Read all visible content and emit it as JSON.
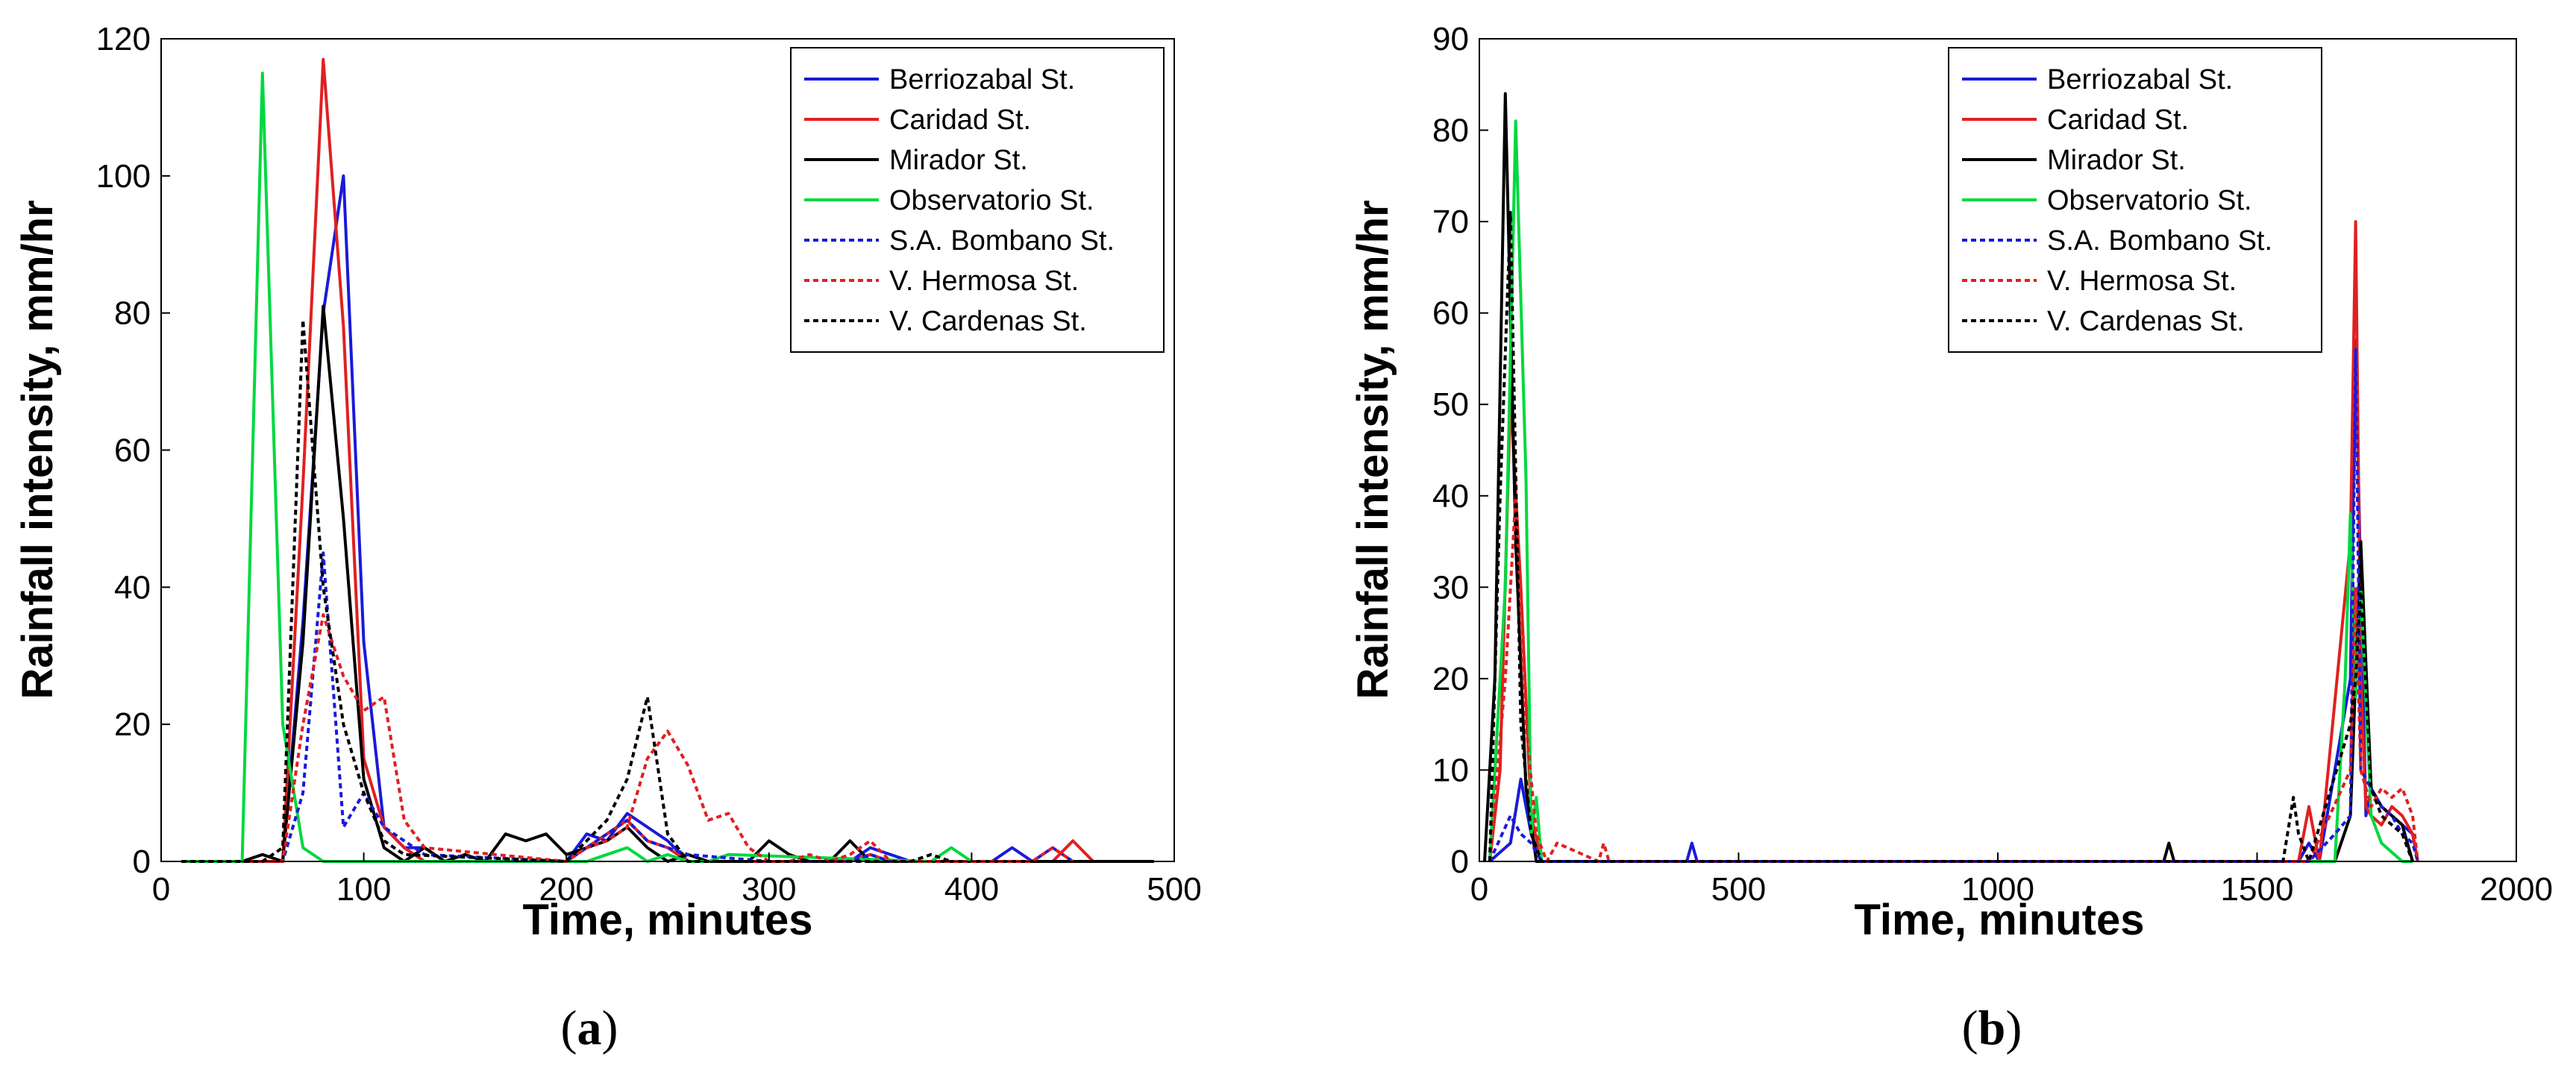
{
  "chart_data": [
    {
      "type": "line",
      "panel_label": "(a)",
      "caption_parts": [
        "(",
        "a",
        ")"
      ],
      "xlabel": "Time, minutes",
      "ylabel": "Rainfall intensity, mm/hr",
      "xlim": [
        0,
        500
      ],
      "ylim": [
        0,
        120
      ],
      "xticks": [
        0,
        100,
        200,
        300,
        400,
        500
      ],
      "yticks": [
        0,
        20,
        40,
        60,
        80,
        100,
        120
      ],
      "legend_position": "top-right",
      "series": [
        {
          "name": "Berriozabal St.",
          "color": "#1a1ad9",
          "dash": "solid",
          "x": [
            10,
            40,
            50,
            60,
            70,
            80,
            90,
            100,
            110,
            120,
            130,
            140,
            150,
            200,
            210,
            220,
            230,
            240,
            250,
            260,
            270,
            280,
            290,
            300,
            340,
            350,
            360,
            370,
            410,
            420,
            430,
            440,
            450,
            460
          ],
          "y": [
            0,
            0,
            0,
            0,
            35,
            80,
            100,
            32,
            5,
            2,
            2,
            0,
            0,
            0,
            4,
            3,
            7,
            5,
            3,
            0,
            0,
            0,
            0,
            0,
            0,
            2,
            1,
            0,
            0,
            2,
            0,
            2,
            0,
            0
          ]
        },
        {
          "name": "Caridad St.",
          "color": "#e02020",
          "dash": "solid",
          "x": [
            10,
            40,
            50,
            60,
            70,
            80,
            90,
            100,
            110,
            120,
            130,
            190,
            200,
            210,
            220,
            230,
            240,
            250,
            260,
            330,
            340,
            350,
            360,
            430,
            440,
            450,
            460
          ],
          "y": [
            0,
            0,
            0,
            0,
            55,
            117,
            78,
            15,
            5,
            2,
            0,
            0,
            0,
            2,
            4,
            6,
            3,
            2,
            0,
            0,
            0,
            1,
            0,
            0,
            0,
            3,
            0
          ]
        },
        {
          "name": "Mirador St.",
          "color": "#000000",
          "dash": "solid",
          "x": [
            10,
            40,
            50,
            60,
            70,
            80,
            90,
            100,
            110,
            120,
            130,
            140,
            150,
            160,
            170,
            180,
            190,
            200,
            210,
            220,
            230,
            240,
            250,
            260,
            270,
            280,
            290,
            300,
            310,
            320,
            330,
            340,
            350,
            360,
            390,
            400,
            490
          ],
          "y": [
            0,
            0,
            1,
            0,
            32,
            81,
            50,
            12,
            2,
            0,
            2,
            0,
            1,
            0,
            4,
            3,
            4,
            1,
            2,
            3,
            5,
            2,
            0,
            1,
            0,
            0,
            0,
            3,
            1,
            0,
            0,
            3,
            0,
            0,
            0,
            0,
            0
          ]
        },
        {
          "name": "Observatorio St.",
          "color": "#00d840",
          "dash": "solid",
          "x": [
            10,
            40,
            50,
            60,
            70,
            80,
            90,
            200,
            210,
            220,
            230,
            240,
            250,
            260,
            270,
            280,
            380,
            390,
            400
          ],
          "y": [
            0,
            0,
            115,
            20,
            2,
            0,
            0,
            0,
            0,
            1,
            2,
            0,
            1,
            0,
            0,
            1,
            0,
            2,
            0
          ]
        },
        {
          "name": "S.A. Bombano St.",
          "color": "#1a1ad9",
          "dash": "dashed",
          "x": [
            10,
            40,
            50,
            60,
            70,
            80,
            90,
            100,
            110,
            120,
            130,
            200,
            210,
            220,
            230,
            240,
            250,
            260,
            300,
            340,
            350,
            360
          ],
          "y": [
            0,
            0,
            0,
            0,
            10,
            45,
            5,
            10,
            5,
            3,
            1,
            0,
            2,
            4,
            6,
            3,
            2,
            1,
            0,
            0,
            1,
            0
          ]
        },
        {
          "name": "V. Hermosa St.",
          "color": "#e02020",
          "dash": "dashed",
          "x": [
            10,
            40,
            50,
            60,
            70,
            80,
            90,
            100,
            110,
            120,
            130,
            200,
            210,
            220,
            230,
            240,
            250,
            260,
            270,
            280,
            290,
            300,
            310,
            320,
            330,
            340,
            350,
            360,
            430,
            440,
            450
          ],
          "y": [
            0,
            0,
            0,
            0,
            20,
            36,
            27,
            22,
            24,
            6,
            2,
            0,
            2,
            3,
            5,
            15,
            19,
            14,
            6,
            7,
            2,
            0,
            0,
            1,
            0,
            1,
            3,
            0,
            0,
            2,
            0
          ]
        },
        {
          "name": "V. Cardenas St.",
          "color": "#000000",
          "dash": "dashed",
          "x": [
            10,
            40,
            50,
            60,
            70,
            80,
            90,
            100,
            110,
            120,
            200,
            210,
            220,
            230,
            240,
            250,
            260,
            370,
            380,
            390
          ],
          "y": [
            0,
            0,
            0,
            2,
            79,
            40,
            20,
            10,
            3,
            1,
            0,
            3,
            6,
            12,
            24,
            4,
            0,
            0,
            1,
            0
          ]
        }
      ]
    },
    {
      "type": "line",
      "panel_label": "(b)",
      "caption_parts": [
        "(",
        "b",
        ")"
      ],
      "xlabel": "Time, minutes",
      "ylabel": "Rainfall intensity, mm/hr",
      "xlim": [
        0,
        2000
      ],
      "ylim": [
        0,
        90
      ],
      "xticks": [
        0,
        500,
        1000,
        1500,
        2000
      ],
      "yticks": [
        0,
        10,
        20,
        30,
        40,
        50,
        60,
        70,
        80,
        90
      ],
      "legend_position": "top-right",
      "series": [
        {
          "name": "Berriozabal St.",
          "color": "#1a1ad9",
          "dash": "solid",
          "x": [
            20,
            60,
            80,
            100,
            120,
            400,
            410,
            420,
            1580,
            1600,
            1620,
            1680,
            1690,
            1700,
            1710,
            1720,
            1740,
            1760,
            1780,
            1800,
            1810
          ],
          "y": [
            0,
            2,
            9,
            3,
            0,
            0,
            2,
            0,
            0,
            2,
            0,
            20,
            57,
            30,
            5,
            8,
            6,
            5,
            4,
            3,
            0
          ]
        },
        {
          "name": "Caridad St.",
          "color": "#e02020",
          "dash": "solid",
          "x": [
            20,
            40,
            60,
            80,
            100,
            120,
            1580,
            1600,
            1620,
            1680,
            1690,
            1700,
            1710,
            1720,
            1740,
            1760,
            1780,
            1800,
            1810
          ],
          "y": [
            0,
            10,
            51,
            30,
            5,
            0,
            0,
            6,
            0,
            35,
            70,
            20,
            6,
            5,
            4,
            6,
            5,
            3,
            0
          ]
        },
        {
          "name": "Mirador St.",
          "color": "#000000",
          "dash": "solid",
          "x": [
            10,
            30,
            50,
            70,
            90,
            110,
            1320,
            1330,
            1340,
            1650,
            1680,
            1700,
            1720,
            1740,
            1760,
            1780,
            1800
          ],
          "y": [
            0,
            20,
            84,
            35,
            8,
            0,
            0,
            2,
            0,
            0,
            5,
            35,
            8,
            6,
            5,
            4,
            0
          ]
        },
        {
          "name": "Observatorio St.",
          "color": "#00d840",
          "dash": "solid",
          "x": [
            20,
            50,
            70,
            90,
            100,
            110,
            120,
            1650,
            1670,
            1680,
            1690,
            1700,
            1720,
            1740,
            1760,
            1780,
            1800
          ],
          "y": [
            0,
            30,
            81,
            42,
            3,
            7,
            0,
            0,
            20,
            38,
            18,
            30,
            5,
            2,
            1,
            0,
            0
          ]
        },
        {
          "name": "S.A. Bombano St.",
          "color": "#1a1ad9",
          "dash": "dashed",
          "x": [
            20,
            60,
            80,
            100,
            120,
            1600,
            1650,
            1680,
            1690,
            1700,
            1720,
            1740,
            1760,
            1780,
            1800,
            1810
          ],
          "y": [
            0,
            5,
            3,
            2,
            0,
            0,
            3,
            5,
            56,
            10,
            8,
            6,
            5,
            3,
            2,
            0
          ]
        },
        {
          "name": "V. Hermosa St.",
          "color": "#e02020",
          "dash": "dashed",
          "x": [
            20,
            50,
            70,
            90,
            110,
            130,
            150,
            230,
            240,
            250,
            1600,
            1680,
            1690,
            1700,
            1720,
            1740,
            1760,
            1780,
            1800,
            1810
          ],
          "y": [
            0,
            20,
            40,
            15,
            3,
            0,
            2,
            0,
            2,
            0,
            0,
            10,
            30,
            10,
            6,
            8,
            7,
            8,
            5,
            0
          ]
        },
        {
          "name": "V. Cardenas St.",
          "color": "#000000",
          "dash": "dashed",
          "x": [
            20,
            40,
            60,
            80,
            100,
            120,
            1550,
            1570,
            1580,
            1600,
            1680,
            1690,
            1700,
            1720,
            1740,
            1760,
            1780,
            1800
          ],
          "y": [
            0,
            40,
            71,
            15,
            3,
            0,
            0,
            7,
            3,
            0,
            15,
            20,
            30,
            8,
            5,
            4,
            3,
            0
          ]
        }
      ]
    }
  ]
}
